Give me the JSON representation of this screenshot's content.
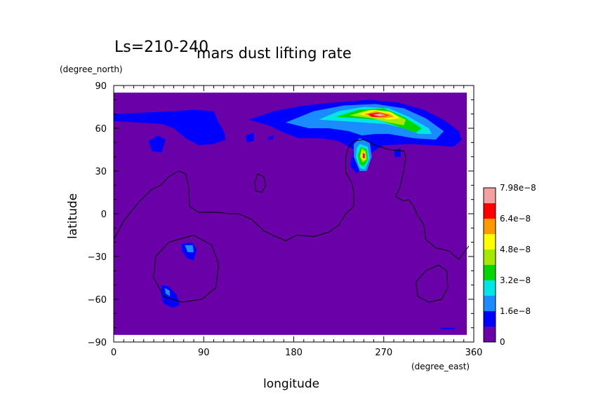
{
  "chart_data": {
    "type": "heatmap",
    "title": "mars dust lifting rate",
    "subtitle": "Ls=210-240",
    "xlabel": "longitude",
    "ylabel": "latitude",
    "x_unit": "(degree_east)",
    "y_unit": "(degree_north)",
    "xlim": [
      0,
      360
    ],
    "ylim": [
      -90,
      90
    ],
    "data_extent_lat": [
      -85,
      85
    ],
    "x_ticks": [
      0,
      90,
      180,
      270,
      360
    ],
    "y_ticks": [
      -90,
      -60,
      -30,
      0,
      30,
      60,
      90
    ],
    "x_tick_labels": [
      "0",
      "90",
      "180",
      "270",
      "360"
    ],
    "y_tick_labels": [
      "−90",
      "−60",
      "−30",
      "0",
      "30",
      "60",
      "90"
    ],
    "colorbar": {
      "levels": [
        0,
        8e-09,
        1.6e-08,
        2.4e-08,
        3.2e-08,
        4e-08,
        4.8e-08,
        5.6e-08,
        6.4e-08,
        7.2e-08
      ],
      "colors": [
        "#6a00a8",
        "#0000ff",
        "#1a8cff",
        "#00e5e5",
        "#00d700",
        "#a5e800",
        "#ffff00",
        "#ff9900",
        "#ff0000",
        "#f5a0a0"
      ],
      "tick_labels": [
        "0",
        "1.6e−8",
        "3.2e−8",
        "4.8e−8",
        "6.4e−8",
        "7.98e−8"
      ]
    },
    "contour_regions": [
      {
        "level": 1,
        "name": "northern-band-west",
        "points": [
          [
            0,
            70
          ],
          [
            30,
            71
          ],
          [
            60,
            72
          ],
          [
            80,
            73
          ],
          [
            100,
            72
          ],
          [
            105,
            64
          ],
          [
            110,
            58
          ],
          [
            112,
            52
          ],
          [
            100,
            49
          ],
          [
            85,
            48
          ],
          [
            72,
            53
          ],
          [
            60,
            60
          ],
          [
            48,
            63
          ],
          [
            25,
            64
          ],
          [
            0,
            65
          ]
        ]
      },
      {
        "level": 1,
        "name": "northern-cap-main",
        "points": [
          [
            135,
            66
          ],
          [
            160,
            72
          ],
          [
            190,
            76
          ],
          [
            220,
            78
          ],
          [
            255,
            80
          ],
          [
            285,
            78
          ],
          [
            310,
            73
          ],
          [
            332,
            65
          ],
          [
            345,
            58
          ],
          [
            348,
            52
          ],
          [
            340,
            47
          ],
          [
            320,
            48
          ],
          [
            295,
            49
          ],
          [
            270,
            48
          ],
          [
            255,
            42
          ],
          [
            249,
            34
          ],
          [
            243,
            28
          ],
          [
            236,
            34
          ],
          [
            240,
            45
          ],
          [
            225,
            51
          ],
          [
            205,
            53
          ],
          [
            185,
            53
          ],
          [
            170,
            57
          ],
          [
            155,
            62
          ]
        ]
      },
      {
        "level": 1,
        "name": "blob-west",
        "points": [
          [
            35,
            51
          ],
          [
            44,
            55
          ],
          [
            52,
            52
          ],
          [
            48,
            43
          ],
          [
            38,
            44
          ]
        ]
      },
      {
        "level": 1,
        "name": "blob-small-a",
        "points": [
          [
            132,
            55
          ],
          [
            140,
            57
          ],
          [
            140,
            51
          ],
          [
            133,
            50
          ]
        ]
      },
      {
        "level": 1,
        "name": "blob-small-b",
        "points": [
          [
            155,
            54
          ],
          [
            160,
            55
          ],
          [
            159,
            52
          ],
          [
            154,
            52
          ]
        ]
      },
      {
        "level": 1,
        "name": "blob-east-small",
        "points": [
          [
            280,
            45
          ],
          [
            287,
            46
          ],
          [
            287,
            40
          ],
          [
            281,
            40
          ]
        ]
      },
      {
        "level": 1,
        "name": "southern-blob-a",
        "points": [
          [
            68,
            -21
          ],
          [
            78,
            -20
          ],
          [
            83,
            -25
          ],
          [
            80,
            -33
          ],
          [
            73,
            -31
          ],
          [
            68,
            -26
          ]
        ]
      },
      {
        "level": 1,
        "name": "southern-blob-b",
        "points": [
          [
            48,
            -50
          ],
          [
            55,
            -51
          ],
          [
            63,
            -57
          ],
          [
            66,
            -64
          ],
          [
            59,
            -66
          ],
          [
            50,
            -63
          ],
          [
            47,
            -56
          ]
        ]
      },
      {
        "level": 1,
        "name": "southern-sliver",
        "points": [
          [
            327,
            -80
          ],
          [
            341,
            -80
          ],
          [
            341,
            -81
          ],
          [
            327,
            -81
          ]
        ]
      },
      {
        "level": 2,
        "name": "northern-cap-l2",
        "points": [
          [
            172,
            64
          ],
          [
            200,
            72
          ],
          [
            230,
            76
          ],
          [
            262,
            77
          ],
          [
            290,
            74
          ],
          [
            312,
            67
          ],
          [
            330,
            58
          ],
          [
            322,
            52
          ],
          [
            300,
            53
          ],
          [
            275,
            56
          ],
          [
            262,
            56
          ],
          [
            248,
            55
          ],
          [
            235,
            58
          ],
          [
            215,
            60
          ],
          [
            195,
            60
          ]
        ]
      },
      {
        "level": 2,
        "name": "dome-l2",
        "points": [
          [
            246,
            53
          ],
          [
            256,
            50
          ],
          [
            258,
            40
          ],
          [
            253,
            30
          ],
          [
            246,
            30
          ],
          [
            240,
            40
          ],
          [
            240,
            49
          ]
        ]
      },
      {
        "level": 2,
        "name": "southern-blob-a-l2",
        "points": [
          [
            71,
            -22
          ],
          [
            79,
            -22
          ],
          [
            80,
            -27
          ],
          [
            74,
            -27
          ]
        ]
      },
      {
        "level": 2,
        "name": "southern-blob-b-l2",
        "points": [
          [
            51,
            -52
          ],
          [
            56,
            -54
          ],
          [
            56,
            -58
          ],
          [
            52,
            -56
          ]
        ]
      },
      {
        "level": 3,
        "name": "northern-cap-l3",
        "points": [
          [
            205,
            66
          ],
          [
            225,
            72
          ],
          [
            250,
            75
          ],
          [
            275,
            74
          ],
          [
            295,
            68
          ],
          [
            315,
            60
          ],
          [
            318,
            56
          ],
          [
            305,
            56
          ],
          [
            290,
            60
          ],
          [
            272,
            63
          ],
          [
            250,
            64
          ],
          [
            228,
            65
          ]
        ]
      },
      {
        "level": 3,
        "name": "dome-l3",
        "points": [
          [
            246,
            49
          ],
          [
            254,
            47
          ],
          [
            256,
            39
          ],
          [
            251,
            31
          ],
          [
            246,
            32
          ],
          [
            242,
            40
          ],
          [
            243,
            46
          ]
        ]
      },
      {
        "level": 4,
        "name": "northern-cap-l4",
        "points": [
          [
            222,
            68
          ],
          [
            245,
            73
          ],
          [
            270,
            74
          ],
          [
            290,
            68
          ],
          [
            308,
            60
          ],
          [
            302,
            57
          ],
          [
            285,
            61
          ],
          [
            265,
            66
          ],
          [
            245,
            67
          ]
        ]
      },
      {
        "level": 4,
        "name": "dome-l4",
        "points": [
          [
            247,
            47
          ],
          [
            253,
            45
          ],
          [
            254,
            38
          ],
          [
            250,
            33
          ],
          [
            246,
            35
          ],
          [
            244,
            41
          ]
        ]
      },
      {
        "level": 5,
        "name": "northern-cap-l5",
        "points": [
          [
            236,
            69
          ],
          [
            255,
            73
          ],
          [
            275,
            72
          ],
          [
            292,
            66
          ],
          [
            290,
            62
          ],
          [
            275,
            64
          ],
          [
            258,
            67
          ]
        ]
      },
      {
        "level": 5,
        "name": "dome-l5",
        "points": [
          [
            248,
            46
          ],
          [
            252,
            44
          ],
          [
            253,
            38
          ],
          [
            249,
            36
          ],
          [
            246,
            40
          ]
        ]
      },
      {
        "level": 6,
        "name": "northern-cap-l6",
        "points": [
          [
            244,
            70
          ],
          [
            260,
            73
          ],
          [
            278,
            71
          ],
          [
            286,
            67
          ],
          [
            275,
            66
          ],
          [
            260,
            68
          ]
        ]
      },
      {
        "level": 6,
        "name": "dome-l6",
        "points": [
          [
            248,
            44
          ],
          [
            251,
            43
          ],
          [
            251,
            38
          ],
          [
            249,
            38
          ],
          [
            247,
            41
          ]
        ]
      },
      {
        "level": 7,
        "name": "northern-cap-l7",
        "points": [
          [
            250,
            70
          ],
          [
            262,
            72
          ],
          [
            276,
            70
          ],
          [
            280,
            68
          ],
          [
            270,
            67
          ],
          [
            258,
            68
          ]
        ]
      },
      {
        "level": 8,
        "name": "northern-cap-l8",
        "points": [
          [
            254,
            70
          ],
          [
            265,
            71
          ],
          [
            275,
            69
          ],
          [
            268,
            68
          ],
          [
            258,
            68
          ]
        ]
      },
      {
        "level": 8,
        "name": "dome-l8",
        "points": [
          [
            249,
            43
          ],
          [
            251,
            42
          ],
          [
            251,
            39
          ],
          [
            249,
            39
          ]
        ]
      },
      {
        "level": 9,
        "name": "northern-cap-l9",
        "points": [
          [
            259,
            69.5
          ],
          [
            266,
            70.5
          ],
          [
            273,
            69
          ],
          [
            266,
            68.3
          ]
        ]
      }
    ],
    "topography_lines": [
      {
        "closed": false,
        "points": [
          [
            0,
            -18
          ],
          [
            10,
            -5
          ],
          [
            25,
            8
          ],
          [
            38,
            17
          ],
          [
            47,
            20
          ],
          [
            55,
            26
          ],
          [
            65,
            30
          ],
          [
            72,
            28
          ],
          [
            75,
            18
          ],
          [
            76,
            5
          ],
          [
            85,
            1
          ],
          [
            95,
            1
          ],
          [
            105,
            1
          ],
          [
            115,
            0
          ],
          [
            125,
            0
          ],
          [
            138,
            -4
          ],
          [
            150,
            -12
          ],
          [
            162,
            -16
          ],
          [
            172,
            -19
          ],
          [
            183,
            -15
          ],
          [
            200,
            -16
          ],
          [
            215,
            -13
          ],
          [
            225,
            -8
          ],
          [
            232,
            0
          ],
          [
            240,
            5
          ],
          [
            240,
            15
          ],
          [
            238,
            22
          ],
          [
            232,
            29
          ],
          [
            232,
            40
          ],
          [
            235,
            47
          ],
          [
            240,
            51
          ],
          [
            250,
            52
          ],
          [
            262,
            48
          ],
          [
            275,
            45
          ],
          [
            290,
            44
          ],
          [
            292,
            40
          ],
          [
            290,
            30
          ],
          [
            286,
            18
          ],
          [
            282,
            12
          ],
          [
            290,
            9
          ],
          [
            295,
            10
          ],
          [
            300,
            5
          ],
          [
            303,
            0
          ],
          [
            310,
            -8
          ],
          [
            312,
            -18
          ],
          [
            322,
            -24
          ],
          [
            335,
            -26
          ],
          [
            345,
            -32
          ],
          [
            360,
            -18
          ]
        ]
      },
      {
        "closed": true,
        "points": [
          [
            80,
            -15
          ],
          [
            98,
            -22
          ],
          [
            105,
            -35
          ],
          [
            102,
            -52
          ],
          [
            88,
            -60
          ],
          [
            68,
            -62
          ],
          [
            50,
            -58
          ],
          [
            40,
            -45
          ],
          [
            42,
            -30
          ],
          [
            55,
            -20
          ]
        ]
      },
      {
        "closed": true,
        "points": [
          [
            144,
            28
          ],
          [
            150,
            26
          ],
          [
            152,
            20
          ],
          [
            148,
            15
          ],
          [
            142,
            16
          ],
          [
            141,
            22
          ]
        ]
      },
      {
        "closed": true,
        "points": [
          [
            325,
            -36
          ],
          [
            333,
            -40
          ],
          [
            334,
            -52
          ],
          [
            328,
            -60
          ],
          [
            315,
            -62
          ],
          [
            304,
            -58
          ],
          [
            302,
            -48
          ],
          [
            312,
            -40
          ]
        ]
      }
    ]
  }
}
